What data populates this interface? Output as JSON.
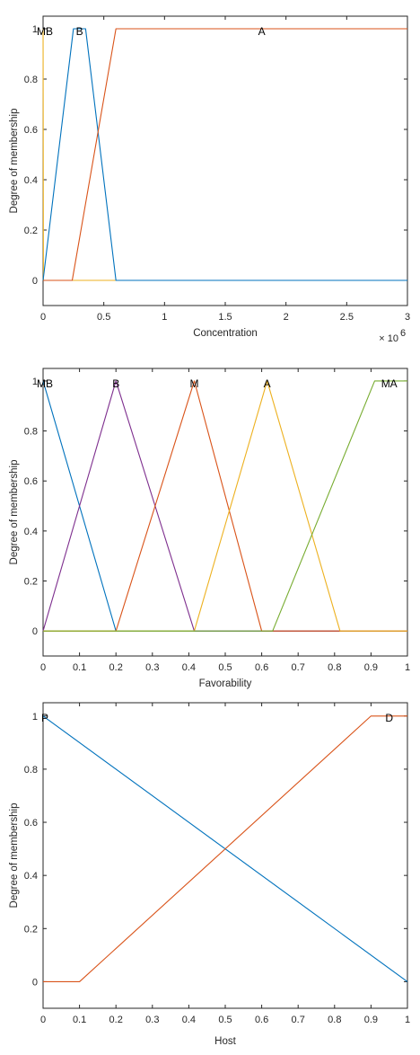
{
  "chart_data": [
    {
      "type": "line",
      "xlabel": "Concentration",
      "ylabel": "Degree of membership",
      "x_exponent_label": "× 10",
      "x_exponent": "6",
      "xlim": [
        0,
        3
      ],
      "ylim": [
        -0.1,
        1.05
      ],
      "xticks": [
        0,
        0.5,
        1,
        1.5,
        2,
        2.5,
        3
      ],
      "xtick_labels": [
        "0",
        "0.5",
        "1",
        "1.5",
        "2",
        "2.5",
        "3"
      ],
      "yticks": [
        0,
        0.2,
        0.4,
        0.6,
        0.8,
        1
      ],
      "ytick_labels": [
        "0",
        "0.2",
        "0.4",
        "0.6",
        "0.8",
        "1"
      ],
      "grid": false,
      "series": [
        {
          "name": "MB",
          "color": "#EDB120",
          "label_x": 0.0,
          "label_anchor": "middle",
          "x": [
            0,
            0.003,
            3
          ],
          "y": [
            1,
            0,
            0
          ]
        },
        {
          "name": "B",
          "color": "#0072BD",
          "label_x": 0.3,
          "label_anchor": "middle",
          "x": [
            0,
            0.25,
            0.35,
            0.6,
            3
          ],
          "y": [
            0,
            1,
            1,
            0,
            0
          ]
        },
        {
          "name": "A",
          "color": "#D95319",
          "label_x": 1.8,
          "label_anchor": "middle",
          "x": [
            0,
            0.24,
            0.6,
            3
          ],
          "y": [
            0,
            0,
            1,
            1
          ]
        }
      ]
    },
    {
      "type": "line",
      "xlabel": "Favorability",
      "ylabel": "Degree of membership",
      "xlim": [
        0,
        1
      ],
      "ylim": [
        -0.1,
        1.05
      ],
      "xticks": [
        0,
        0.1,
        0.2,
        0.3,
        0.4,
        0.5,
        0.6,
        0.7,
        0.8,
        0.9,
        1
      ],
      "xtick_labels": [
        "0",
        "0.1",
        "0.2",
        "0.3",
        "0.4",
        "0.5",
        "0.6",
        "0.7",
        "0.8",
        "0.9",
        "1"
      ],
      "yticks": [
        0,
        0.2,
        0.4,
        0.6,
        0.8,
        1
      ],
      "ytick_labels": [
        "0",
        "0.2",
        "0.4",
        "0.6",
        "0.8",
        "1"
      ],
      "grid": false,
      "series": [
        {
          "name": "MB",
          "color": "#0072BD",
          "label_x": 0.0,
          "label_anchor": "middle",
          "x": [
            0,
            0.2,
            1
          ],
          "y": [
            1,
            0,
            0
          ]
        },
        {
          "name": "B",
          "color": "#7E2F8E",
          "label_x": 0.2,
          "label_anchor": "middle",
          "x": [
            0,
            0.2,
            0.415,
            1
          ],
          "y": [
            0,
            1,
            0,
            0
          ]
        },
        {
          "name": "M",
          "color": "#D95319",
          "label_x": 0.415,
          "label_anchor": "middle",
          "x": [
            0,
            0.2,
            0.415,
            0.6,
            1
          ],
          "y": [
            0,
            0,
            1,
            0,
            0
          ]
        },
        {
          "name": "A",
          "color": "#EDB120",
          "label_x": 0.615,
          "label_anchor": "middle",
          "x": [
            0,
            0.415,
            0.615,
            0.815,
            1
          ],
          "y": [
            0,
            0,
            1,
            0,
            0
          ]
        },
        {
          "name": "MA",
          "color": "#77AC30",
          "label_x": 0.95,
          "label_anchor": "middle",
          "x": [
            0,
            0.63,
            0.91,
            1
          ],
          "y": [
            0,
            0,
            1,
            1
          ]
        }
      ]
    },
    {
      "type": "line",
      "xlabel": "Host",
      "ylabel": "Degree of membership",
      "xlim": [
        0,
        1
      ],
      "ylim": [
        -0.1,
        1.05
      ],
      "xticks": [
        0,
        0.1,
        0.2,
        0.3,
        0.4,
        0.5,
        0.6,
        0.7,
        0.8,
        0.9,
        1
      ],
      "xtick_labels": [
        "0",
        "0.1",
        "0.2",
        "0.3",
        "0.4",
        "0.5",
        "0.6",
        "0.7",
        "0.8",
        "0.9",
        "1"
      ],
      "yticks": [
        0,
        0.2,
        0.4,
        0.6,
        0.8,
        1
      ],
      "ytick_labels": [
        "0",
        "0.2",
        "0.4",
        "0.6",
        "0.8",
        "1"
      ],
      "grid": false,
      "series": [
        {
          "name": "P",
          "color": "#0072BD",
          "label_x": 0.0,
          "label_anchor": "middle",
          "x": [
            0,
            1
          ],
          "y": [
            1,
            0
          ]
        },
        {
          "name": "D",
          "color": "#D95319",
          "label_x": 0.95,
          "label_anchor": "middle",
          "x": [
            0,
            0.1,
            0.9,
            1
          ],
          "y": [
            0,
            0,
            1,
            1
          ]
        }
      ]
    }
  ]
}
